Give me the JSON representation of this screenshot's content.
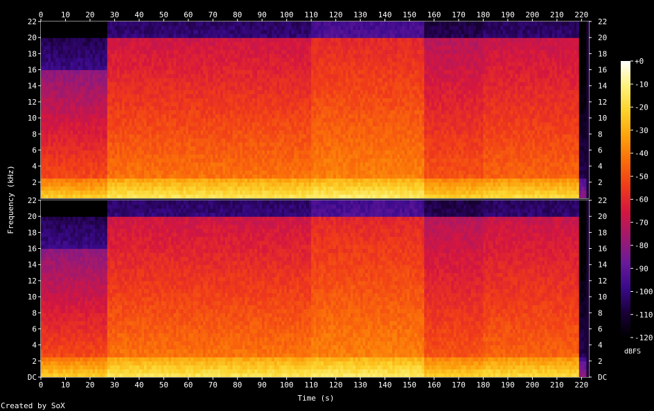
{
  "chart_data": {
    "type": "heatmap",
    "xlabel": "Time (s)",
    "ylabel": "Frequency (kHz)",
    "colorbar_label": "dBFS",
    "footer": "Created by SoX",
    "x_ticks": [
      "0",
      "10",
      "20",
      "30",
      "40",
      "50",
      "60",
      "70",
      "80",
      "90",
      "100",
      "110",
      "120",
      "130",
      "140",
      "150",
      "160",
      "170",
      "180",
      "190",
      "200",
      "210",
      "220"
    ],
    "x_tick_values": [
      0,
      10,
      20,
      30,
      40,
      50,
      60,
      70,
      80,
      90,
      100,
      110,
      120,
      130,
      140,
      150,
      160,
      170,
      180,
      190,
      200,
      210,
      220
    ],
    "xlim": [
      0,
      223
    ],
    "ylim": [
      0,
      22
    ],
    "y_ticks_top": [
      "22",
      "20",
      "18",
      "16",
      "14",
      "12",
      "10",
      "8",
      "6",
      "4",
      "2"
    ],
    "y_ticks_bottom": [
      "22",
      "20",
      "18",
      "16",
      "14",
      "12",
      "10",
      "8",
      "6",
      "4",
      "2",
      "DC"
    ],
    "y_tick_values": [
      22,
      20,
      18,
      16,
      14,
      12,
      10,
      8,
      6,
      4,
      2,
      0
    ],
    "colorbar_ticks": [
      "+0",
      "-10",
      "-20",
      "-30",
      "-40",
      "-50",
      "-60",
      "-70",
      "-80",
      "-90",
      "-100",
      "-110",
      "-120"
    ],
    "colorbar_range": [
      -120,
      0
    ],
    "channels": 2,
    "duration_s": 222,
    "colormap_stops": [
      "#000000",
      "#1a0038",
      "#3b0a8c",
      "#6b1a9a",
      "#a0196e",
      "#d4163f",
      "#f03a1a",
      "#fa6b0a",
      "#fca10c",
      "#fcd22a",
      "#fdf27a",
      "#ffffff"
    ]
  }
}
